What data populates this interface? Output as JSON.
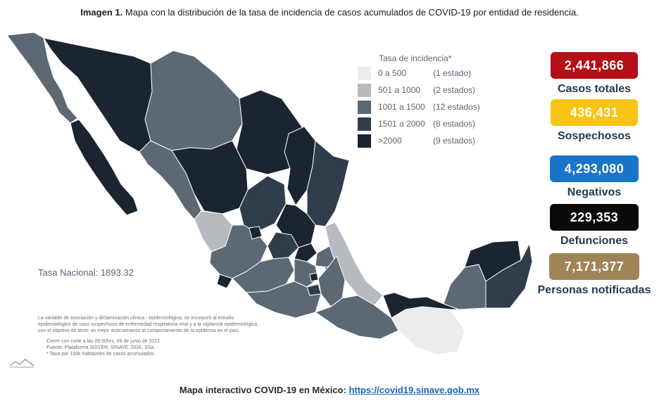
{
  "caption": {
    "bold": "Imagen 1.",
    "text": "Mapa con la distribución de la tasa de incidencia de casos acumulados de COVID-19 por entidad de residencia."
  },
  "legend": {
    "title": "Tasa de incidencia*",
    "items": [
      {
        "range": "0 a   500",
        "count": "(1 estado)",
        "color": "#ececec"
      },
      {
        "range": "501 a  1000",
        "count": "(2 estados)",
        "color": "#b7bbbf"
      },
      {
        "range": "1001 a  1500",
        "count": "(12 estados)",
        "color": "#5d6875"
      },
      {
        "range": "1501 a  2000",
        "count": "(8 estados)",
        "color": "#2f3d4c"
      },
      {
        "range": ">2000",
        "count": "(9 estados)",
        "color": "#1b2431"
      }
    ]
  },
  "tasa_nacional": "Tasa Nacional: 1893.32",
  "notes": [
    "La variable de asociación y dictaminación clínica - epidemiológica, se incorporó al estudio",
    "epidemiológico de caso sospechoso de enfermedad respiratoria viral y a la vigilancia epidemiológica,",
    "con el objetivo de tener un mejor acercamiento al comportamiento de la epidemia en el país."
  ],
  "sources": [
    "Cierre con corte a las 09:00hrs, 09 de junio de 2021",
    "Fuente: Plataforma SISVER, SINAVE, DGE, SSa.",
    "* Tasa por 100k habitantes de casos acumulados."
  ],
  "stats": [
    {
      "value": "2,441,866",
      "label": "Casos totales",
      "color": "#b50f17"
    },
    {
      "value": "436,431",
      "label": "Sospechosos",
      "color": "#f7c416"
    },
    {
      "value": "4,293,080",
      "label": "Negativos",
      "color": "#1a75c9"
    },
    {
      "value": "229,353",
      "label": "Defunciones",
      "color": "#0a0a0a"
    },
    {
      "value": "7,171,377",
      "label": "Personas notificadas",
      "color": "#a08456"
    }
  ],
  "bottom": {
    "text": "Mapa interactivo COVID-19 en México:",
    "link": "https://covid19.sinave.gob.mx"
  }
}
